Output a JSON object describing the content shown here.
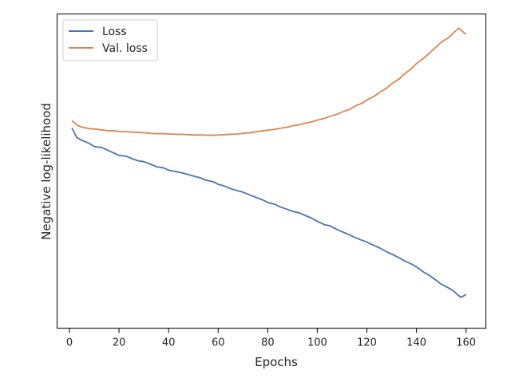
{
  "chart_data": {
    "type": "line",
    "xlabel": "Epochs",
    "ylabel": "Negative log-likelihood",
    "xlim": [
      -5,
      168
    ],
    "ylim": [
      0,
      1
    ],
    "xticks": [
      0,
      20,
      40,
      60,
      80,
      100,
      120,
      140,
      160
    ],
    "y_tick_labels_shown": false,
    "grid": false,
    "legend_position": "top-left",
    "series": [
      {
        "name": "Loss",
        "color": "#4c72b0",
        "points": [
          [
            1,
            0.637
          ],
          [
            3,
            0.606
          ],
          [
            5,
            0.598
          ],
          [
            8,
            0.588
          ],
          [
            10,
            0.578
          ],
          [
            13,
            0.575
          ],
          [
            15,
            0.568
          ],
          [
            18,
            0.557
          ],
          [
            20,
            0.55
          ],
          [
            23,
            0.547
          ],
          [
            25,
            0.54
          ],
          [
            28,
            0.532
          ],
          [
            30,
            0.53
          ],
          [
            33,
            0.521
          ],
          [
            35,
            0.514
          ],
          [
            38,
            0.51
          ],
          [
            40,
            0.503
          ],
          [
            43,
            0.498
          ],
          [
            45,
            0.495
          ],
          [
            48,
            0.489
          ],
          [
            50,
            0.484
          ],
          [
            53,
            0.478
          ],
          [
            55,
            0.471
          ],
          [
            58,
            0.466
          ],
          [
            60,
            0.458
          ],
          [
            63,
            0.451
          ],
          [
            65,
            0.444
          ],
          [
            68,
            0.437
          ],
          [
            70,
            0.433
          ],
          [
            73,
            0.423
          ],
          [
            75,
            0.417
          ],
          [
            78,
            0.408
          ],
          [
            80,
            0.4
          ],
          [
            83,
            0.394
          ],
          [
            85,
            0.386
          ],
          [
            88,
            0.378
          ],
          [
            90,
            0.372
          ],
          [
            93,
            0.366
          ],
          [
            95,
            0.359
          ],
          [
            98,
            0.349
          ],
          [
            100,
            0.34
          ],
          [
            103,
            0.329
          ],
          [
            105,
            0.326
          ],
          [
            108,
            0.314
          ],
          [
            110,
            0.307
          ],
          [
            113,
            0.297
          ],
          [
            115,
            0.289
          ],
          [
            118,
            0.28
          ],
          [
            120,
            0.274
          ],
          [
            123,
            0.263
          ],
          [
            125,
            0.256
          ],
          [
            128,
            0.243
          ],
          [
            130,
            0.236
          ],
          [
            133,
            0.224
          ],
          [
            135,
            0.215
          ],
          [
            138,
            0.204
          ],
          [
            140,
            0.195
          ],
          [
            143,
            0.178
          ],
          [
            145,
            0.169
          ],
          [
            148,
            0.152
          ],
          [
            150,
            0.14
          ],
          [
            153,
            0.128
          ],
          [
            155,
            0.118
          ],
          [
            157,
            0.104
          ],
          [
            158,
            0.098
          ],
          [
            160,
            0.107
          ]
        ]
      },
      {
        "name": "Val. loss",
        "color": "#dd8452",
        "points": [
          [
            1,
            0.661
          ],
          [
            3,
            0.646
          ],
          [
            5,
            0.64
          ],
          [
            8,
            0.635
          ],
          [
            10,
            0.634
          ],
          [
            13,
            0.631
          ],
          [
            15,
            0.629
          ],
          [
            18,
            0.628
          ],
          [
            20,
            0.626
          ],
          [
            23,
            0.625
          ],
          [
            25,
            0.624
          ],
          [
            28,
            0.623
          ],
          [
            30,
            0.622
          ],
          [
            33,
            0.62
          ],
          [
            35,
            0.619
          ],
          [
            38,
            0.619
          ],
          [
            40,
            0.618
          ],
          [
            43,
            0.617
          ],
          [
            45,
            0.617
          ],
          [
            48,
            0.616
          ],
          [
            50,
            0.615
          ],
          [
            53,
            0.615
          ],
          [
            55,
            0.614
          ],
          [
            58,
            0.614
          ],
          [
            60,
            0.615
          ],
          [
            63,
            0.616
          ],
          [
            65,
            0.617
          ],
          [
            68,
            0.618
          ],
          [
            70,
            0.62
          ],
          [
            73,
            0.622
          ],
          [
            75,
            0.625
          ],
          [
            78,
            0.628
          ],
          [
            80,
            0.63
          ],
          [
            83,
            0.633
          ],
          [
            85,
            0.636
          ],
          [
            88,
            0.64
          ],
          [
            90,
            0.644
          ],
          [
            93,
            0.648
          ],
          [
            95,
            0.652
          ],
          [
            98,
            0.657
          ],
          [
            100,
            0.662
          ],
          [
            103,
            0.668
          ],
          [
            105,
            0.674
          ],
          [
            108,
            0.681
          ],
          [
            110,
            0.688
          ],
          [
            113,
            0.696
          ],
          [
            115,
            0.706
          ],
          [
            118,
            0.716
          ],
          [
            120,
            0.726
          ],
          [
            123,
            0.738
          ],
          [
            125,
            0.75
          ],
          [
            128,
            0.764
          ],
          [
            130,
            0.778
          ],
          [
            133,
            0.793
          ],
          [
            135,
            0.808
          ],
          [
            138,
            0.826
          ],
          [
            140,
            0.842
          ],
          [
            143,
            0.86
          ],
          [
            145,
            0.874
          ],
          [
            148,
            0.895
          ],
          [
            150,
            0.91
          ],
          [
            153,
            0.925
          ],
          [
            155,
            0.94
          ],
          [
            157,
            0.955
          ],
          [
            158,
            0.948
          ],
          [
            160,
            0.935
          ]
        ]
      }
    ]
  }
}
